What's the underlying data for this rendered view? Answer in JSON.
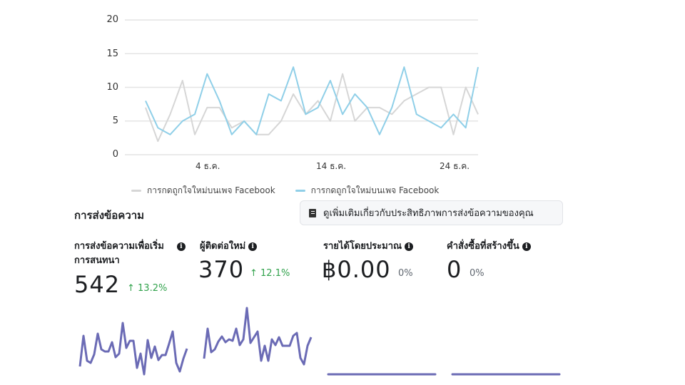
{
  "chart": {
    "y_ticks": [
      "20",
      "15",
      "10",
      "5",
      "0"
    ],
    "x_ticks": [
      "4 ธ.ค.",
      "14 ธ.ค.",
      "24 ธ.ค."
    ],
    "legend": [
      {
        "label": "การกดถูกใจใหม่บนเพจ Facebook",
        "color": "#d6d6d6"
      },
      {
        "label": "การกดถูกใจใหม่บนเพจ Facebook",
        "color": "#8fcfe8"
      }
    ]
  },
  "chart_data": {
    "type": "line",
    "title": "",
    "xlabel": "",
    "ylabel": "",
    "ylim": [
      0,
      20
    ],
    "x_tick_labels": [
      "4 ธ.ค.",
      "14 ธ.ค.",
      "24 ธ.ค."
    ],
    "x": [
      1,
      2,
      3,
      4,
      5,
      6,
      7,
      8,
      9,
      10,
      11,
      12,
      13,
      14,
      15,
      16,
      17,
      18,
      19,
      20,
      21,
      22,
      23,
      24,
      25,
      26,
      27,
      28
    ],
    "grid": true,
    "legend_position": "bottom",
    "series": [
      {
        "name": "การกดถูกใจใหม่บนเพจ Facebook (previous)",
        "color": "#d6d6d6",
        "values": [
          7,
          2,
          6,
          11,
          3,
          7,
          7,
          4,
          5,
          3,
          3,
          5,
          9,
          6,
          8,
          5,
          12,
          5,
          7,
          7,
          6,
          8,
          9,
          10,
          10,
          3,
          10,
          6
        ]
      },
      {
        "name": "การกดถูกใจใหม่บนเพจ Facebook",
        "color": "#8fcfe8",
        "values": [
          8,
          4,
          3,
          5,
          6,
          12,
          8,
          3,
          5,
          3,
          9,
          8,
          13,
          6,
          7,
          11,
          6,
          9,
          7,
          3,
          7,
          13,
          6,
          5,
          4,
          6,
          4,
          13
        ]
      }
    ]
  },
  "messaging": {
    "title": "การส่งข้อความ",
    "learn_more_label": "ดูเพิ่มเติมเกี่ยวกับประสิทธิภาพการส่งข้อความของคุณ",
    "metrics": [
      {
        "label_line1": "การส่งข้อความเพื่อเริ่ม",
        "label_line2": "การสนทนา",
        "value": "542",
        "change": "↑ 13.2%"
      },
      {
        "label_line1": "ผู้ติดต่อใหม่",
        "value": "370",
        "change": "↑ 12.1%"
      },
      {
        "label_line1": "รายได้โดยประมาณ",
        "value": "฿0.00",
        "change": "0%"
      },
      {
        "label_line1": "คำสั่งซื้อที่สร้างขึ้น",
        "value": "0",
        "change": "0%"
      }
    ],
    "sparkline_color": "#6b6bb5",
    "accent_up_color": "#31a24c"
  }
}
